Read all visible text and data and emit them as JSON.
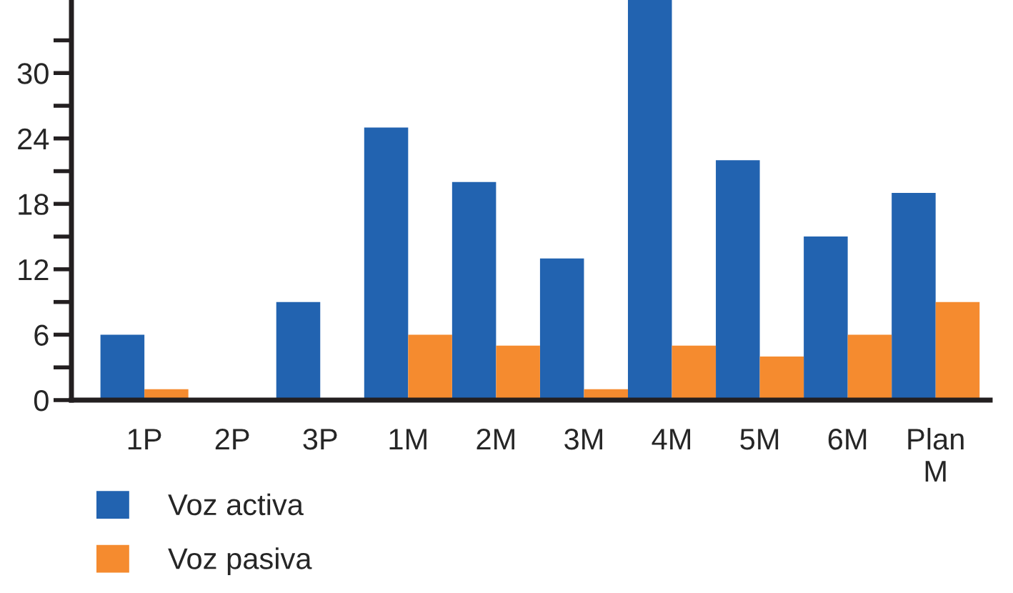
{
  "chart_data": {
    "type": "bar",
    "categories": [
      "1P",
      "2P",
      "3P",
      "1M",
      "2M",
      "3M",
      "4M",
      "5M",
      "6M",
      "Plan\nM"
    ],
    "series": [
      {
        "name": "Voz activa",
        "color": "#2263b0",
        "values": [
          6,
          0,
          9,
          25,
          20,
          13,
          36.7,
          22,
          15,
          19
        ]
      },
      {
        "name": "Voz pasiva",
        "color": "#f58b2f",
        "values": [
          1,
          0,
          0,
          6,
          5,
          1,
          5,
          4,
          6,
          9
        ]
      }
    ],
    "ylim": [
      0,
      36.7
    ],
    "yticks": [
      0,
      {
        "value": 3,
        "label": null
      },
      6,
      {
        "value": 9,
        "label": null
      },
      12,
      {
        "value": 15,
        "label": null
      },
      18,
      {
        "value": 21,
        "label": null
      },
      24,
      {
        "value": 27,
        "label": null
      },
      30,
      {
        "value": 33,
        "label": null
      }
    ],
    "grid": false,
    "legend": "bottom left"
  }
}
